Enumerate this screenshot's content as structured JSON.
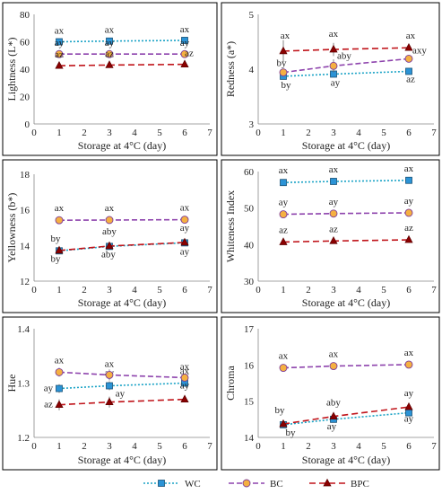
{
  "colors": {
    "WC": "#1BA3C6",
    "BC": "#8E44AD",
    "BPC": "#C0141A",
    "WC_fill": "#2B93D6",
    "BC_fill": "#F5B041",
    "BPC_fill": "#8B0000"
  },
  "legend": [
    {
      "key": "WC",
      "label": "WC",
      "marker": "square"
    },
    {
      "key": "BC",
      "label": "BC",
      "marker": "circle"
    },
    {
      "key": "BPC",
      "label": "BPC",
      "marker": "triangle"
    }
  ],
  "chart_data": [
    {
      "type": "line",
      "ylabel": "Lightness (L*)",
      "xlabel": "Storage at 4°C (day)",
      "xlim": [
        0,
        7
      ],
      "xticks": [
        0,
        1,
        2,
        3,
        4,
        5,
        6,
        7
      ],
      "ylim": [
        0,
        80
      ],
      "yticks": [
        0,
        20,
        40,
        60,
        80
      ],
      "x": [
        1,
        3,
        6
      ],
      "series": [
        {
          "name": "WC",
          "values": [
            60,
            60.5,
            61
          ],
          "labels": [
            "ax",
            "ax",
            "ax"
          ],
          "err": [
            1,
            1,
            1
          ]
        },
        {
          "name": "BC",
          "values": [
            51,
            51,
            51
          ],
          "labels": [
            "ay",
            "ay",
            "ay"
          ],
          "err": [
            1,
            1,
            1
          ]
        },
        {
          "name": "BPC",
          "values": [
            42.5,
            43,
            43.5
          ],
          "labels": [
            "az",
            "az",
            "az"
          ],
          "err": [
            1,
            1,
            1
          ]
        }
      ]
    },
    {
      "type": "line",
      "ylabel": "Redness (a*)",
      "xlabel": "Storage at 4°C (day)",
      "xlim": [
        0,
        7
      ],
      "xticks": [
        0,
        1,
        2,
        3,
        4,
        5,
        6,
        7
      ],
      "ylim": [
        3,
        5
      ],
      "yticks": [
        3,
        4,
        5
      ],
      "x": [
        1,
        3,
        6
      ],
      "series": [
        {
          "name": "WC",
          "values": [
            3.87,
            3.91,
            3.96
          ],
          "labels": [
            "by",
            "ay",
            "az"
          ],
          "err": [
            0.05,
            0.05,
            0.03
          ]
        },
        {
          "name": "BC",
          "values": [
            3.94,
            4.06,
            4.19
          ],
          "labels": [
            "by",
            "aby",
            "axy"
          ],
          "err": [
            0.07,
            0.12,
            0.05
          ]
        },
        {
          "name": "BPC",
          "values": [
            4.33,
            4.36,
            4.39
          ],
          "labels": [
            "ax",
            "ax",
            "ax"
          ],
          "err": [
            0.2,
            0.12,
            0.05
          ]
        }
      ]
    },
    {
      "type": "line",
      "ylabel": "Yellowness (b*)",
      "xlabel": "Storage at 4°C (day)",
      "xlim": [
        0,
        7
      ],
      "xticks": [
        0,
        1,
        2,
        3,
        4,
        5,
        6,
        7
      ],
      "ylim": [
        12,
        18
      ],
      "yticks": [
        12,
        14,
        16,
        18
      ],
      "x": [
        1,
        3,
        6
      ],
      "series": [
        {
          "name": "WC",
          "values": [
            13.7,
            13.95,
            14.15
          ],
          "labels": [
            "by",
            "aby",
            "ay"
          ],
          "err": [
            0.08,
            0.08,
            0.08
          ]
        },
        {
          "name": "BC",
          "values": [
            15.42,
            15.43,
            15.45
          ],
          "labels": [
            "ax",
            "ax",
            "ax"
          ],
          "err": [
            0.05,
            0.05,
            0.05
          ]
        },
        {
          "name": "BPC",
          "values": [
            13.72,
            13.97,
            14.17
          ],
          "labels": [
            "by",
            "aby",
            "ay"
          ],
          "err": [
            0.08,
            0.08,
            0.08
          ]
        }
      ]
    },
    {
      "type": "line",
      "ylabel": "Whiteness Index",
      "xlabel": "Storage at 4°C (day)",
      "xlim": [
        0,
        7
      ],
      "xticks": [
        0,
        1,
        2,
        3,
        4,
        5,
        6,
        7
      ],
      "ylim": [
        30,
        60
      ],
      "yticks": [
        30,
        40,
        50,
        60
      ],
      "x": [
        1,
        3,
        6
      ],
      "series": [
        {
          "name": "WC",
          "values": [
            57,
            57.3,
            57.6
          ],
          "labels": [
            "ax",
            "ax",
            "ax"
          ],
          "err": [
            0.3,
            0.3,
            0.3
          ]
        },
        {
          "name": "BC",
          "values": [
            48.3,
            48.5,
            48.7
          ],
          "labels": [
            "ay",
            "ay",
            "ay"
          ],
          "err": [
            0.3,
            0.3,
            0.3
          ]
        },
        {
          "name": "BPC",
          "values": [
            40.7,
            41,
            41.3
          ],
          "labels": [
            "az",
            "az",
            "az"
          ],
          "err": [
            0.3,
            0.3,
            0.3
          ]
        }
      ]
    },
    {
      "type": "line",
      "ylabel": "Hue",
      "xlabel": "Storage at 4°C (day)",
      "xlim": [
        0,
        7
      ],
      "xticks": [
        0,
        1,
        2,
        3,
        4,
        5,
        6,
        7
      ],
      "ylim": [
        1.2,
        1.4
      ],
      "yticks": [
        1.2,
        1.3,
        1.4
      ],
      "x": [
        1,
        3,
        6
      ],
      "series": [
        {
          "name": "WC",
          "values": [
            1.29,
            1.295,
            1.3
          ],
          "labels": [
            "ay",
            "ay",
            "ax"
          ],
          "err": [
            0.008,
            0.008,
            0.005
          ]
        },
        {
          "name": "BC",
          "values": [
            1.32,
            1.315,
            1.31
          ],
          "labels": [
            "ax",
            "ax",
            "ax"
          ],
          "err": [
            0.008,
            0.01,
            0.005
          ]
        },
        {
          "name": "BPC",
          "values": [
            1.26,
            1.265,
            1.27
          ],
          "labels": [
            "az",
            "ay",
            "ay"
          ],
          "err": [
            0.01,
            0.01,
            0.004
          ]
        }
      ]
    },
    {
      "type": "line",
      "ylabel": "Chroma",
      "xlabel": "Storage at 4°C (day)",
      "xlim": [
        0,
        7
      ],
      "xticks": [
        0,
        1,
        2,
        3,
        4,
        5,
        6,
        7
      ],
      "ylim": [
        14,
        17
      ],
      "yticks": [
        14,
        15,
        16,
        17
      ],
      "x": [
        1,
        3,
        6
      ],
      "series": [
        {
          "name": "WC",
          "values": [
            14.35,
            14.5,
            14.68
          ],
          "labels": [
            "by",
            "ay",
            "ay"
          ],
          "err": [
            0.05,
            0.05,
            0.05
          ]
        },
        {
          "name": "BC",
          "values": [
            15.92,
            15.97,
            16.01
          ],
          "labels": [
            "ax",
            "ax",
            "ax"
          ],
          "err": [
            0.05,
            0.05,
            0.04
          ]
        },
        {
          "name": "BPC",
          "values": [
            14.37,
            14.58,
            14.84
          ],
          "labels": [
            "by",
            "aby",
            "ay"
          ],
          "err": [
            0.1,
            0.08,
            0.06
          ]
        }
      ]
    }
  ]
}
